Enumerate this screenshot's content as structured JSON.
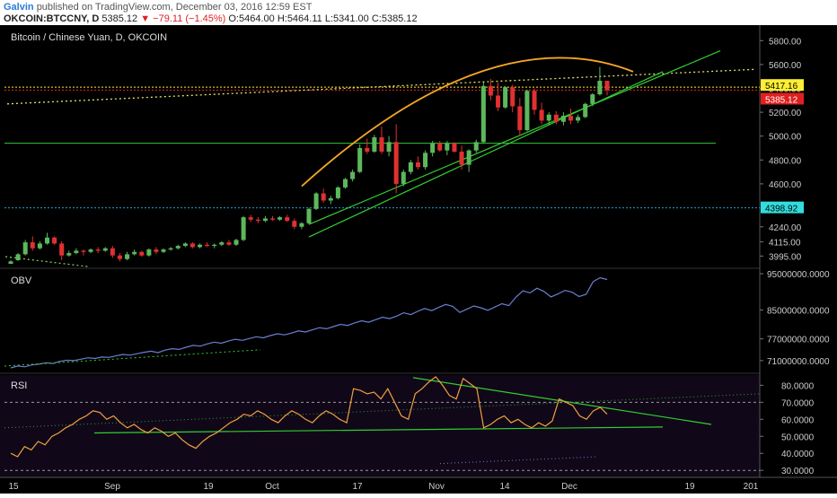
{
  "header": {
    "author": "Galvin",
    "published_text": "published on TradingView.com, December 03, 2016 12:59 EST",
    "symbol": "OKCOIN:BTCCNY, D",
    "last_price": "5385.12",
    "change": "▼ −79.11 (−1.45%)",
    "open": "O:5464.00",
    "high": "H:5464.11",
    "low": "L:5341.00",
    "close": "C:5385.12"
  },
  "colors": {
    "background": "#000000",
    "up_candle": "#5cb85c",
    "down_candle": "#e03030",
    "obv_line": "#6a7fd0",
    "rsi_line": "#f0a040",
    "trend_green": "#33cc33",
    "arc_orange": "#f5a623",
    "dotted_yellow": "#e8e070",
    "last_label": "#e02020",
    "highlight_label": "#ffee33",
    "cyan_label": "#33dddd"
  },
  "chart_data": [
    {
      "type": "candlestick",
      "title": "Bitcoin / Chinese Yuan, D, OKCOIN",
      "ylim": [
        3900,
        5900
      ],
      "y_ticks": [
        "5800.00",
        "5600.00",
        "5400.00",
        "5200.00",
        "5000.00",
        "4800.00",
        "4600.00",
        "4398.92",
        "4240.00",
        "4115.00",
        "3995.00"
      ],
      "x_ticks": [
        "15",
        "Sep",
        "19",
        "Oct",
        "17",
        "Nov",
        "14",
        "Dec",
        "19",
        "201"
      ],
      "price_labels": [
        {
          "value": "5417.16",
          "kind": "highlight"
        },
        {
          "value": "5385.12",
          "kind": "last"
        },
        {
          "value": "4398.92",
          "kind": "level"
        }
      ],
      "horizontal_levels": [
        4940,
        4398.92
      ],
      "candles": [
        [
          3930,
          3960,
          3930,
          3950
        ],
        [
          3960,
          4020,
          3955,
          4010
        ],
        [
          4010,
          4130,
          4000,
          4110
        ],
        [
          4110,
          4160,
          4040,
          4060
        ],
        [
          4060,
          4120,
          4050,
          4100
        ],
        [
          4100,
          4190,
          4090,
          4150
        ],
        [
          4150,
          4160,
          4090,
          4100
        ],
        [
          4100,
          4120,
          3960,
          4000
        ],
        [
          4000,
          4040,
          3990,
          4020
        ],
        [
          4020,
          4060,
          4010,
          4040
        ],
        [
          4040,
          4050,
          4000,
          4030
        ],
        [
          4030,
          4060,
          4020,
          4050
        ],
        [
          4050,
          4070,
          4020,
          4040
        ],
        [
          4040,
          4070,
          4030,
          4060
        ],
        [
          4060,
          4080,
          3980,
          4000
        ],
        [
          4000,
          4020,
          3950,
          3970
        ],
        [
          3970,
          4030,
          3960,
          4010
        ],
        [
          4010,
          4050,
          4000,
          4030
        ],
        [
          4030,
          4040,
          3990,
          4000
        ],
        [
          4000,
          4060,
          3990,
          4050
        ],
        [
          4050,
          4070,
          4010,
          4030
        ],
        [
          4030,
          4060,
          4020,
          4050
        ],
        [
          4050,
          4070,
          4040,
          4060
        ],
        [
          4060,
          4090,
          4050,
          4080
        ],
        [
          4080,
          4110,
          4070,
          4100
        ],
        [
          4100,
          4110,
          4060,
          4070
        ],
        [
          4070,
          4100,
          4060,
          4090
        ],
        [
          4090,
          4110,
          4070,
          4080
        ],
        [
          4080,
          4100,
          4060,
          4090
        ],
        [
          4090,
          4120,
          4080,
          4110
        ],
        [
          4110,
          4130,
          4080,
          4090
        ],
        [
          4090,
          4140,
          4080,
          4130
        ],
        [
          4130,
          4330,
          4120,
          4320
        ],
        [
          4320,
          4340,
          4280,
          4300
        ],
        [
          4300,
          4320,
          4270,
          4290
        ],
        [
          4290,
          4330,
          4280,
          4310
        ],
        [
          4310,
          4330,
          4290,
          4300
        ],
        [
          4300,
          4330,
          4290,
          4320
        ],
        [
          4320,
          4340,
          4280,
          4290
        ],
        [
          4290,
          4310,
          4220,
          4240
        ],
        [
          4240,
          4280,
          4220,
          4270
        ],
        [
          4270,
          4400,
          4260,
          4390
        ],
        [
          4390,
          4530,
          4380,
          4520
        ],
        [
          4520,
          4560,
          4440,
          4460
        ],
        [
          4460,
          4500,
          4430,
          4480
        ],
        [
          4480,
          4580,
          4470,
          4570
        ],
        [
          4570,
          4650,
          4560,
          4640
        ],
        [
          4640,
          4720,
          4620,
          4700
        ],
        [
          4700,
          4930,
          4690,
          4900
        ],
        [
          4900,
          4980,
          4850,
          4870
        ],
        [
          4870,
          5010,
          4860,
          4990
        ],
        [
          4990,
          5080,
          4850,
          4870
        ],
        [
          4870,
          5000,
          4830,
          4950
        ],
        [
          4950,
          5100,
          4520,
          4600
        ],
        [
          4600,
          4720,
          4580,
          4700
        ],
        [
          4700,
          4800,
          4680,
          4780
        ],
        [
          4780,
          4830,
          4720,
          4740
        ],
        [
          4740,
          4880,
          4720,
          4860
        ],
        [
          4860,
          4960,
          4830,
          4940
        ],
        [
          4940,
          4960,
          4870,
          4880
        ],
        [
          4880,
          4960,
          4840,
          4940
        ],
        [
          4940,
          4950,
          4860,
          4870
        ],
        [
          4870,
          4920,
          4720,
          4760
        ],
        [
          4760,
          4890,
          4700,
          4880
        ],
        [
          4880,
          4970,
          4860,
          4950
        ],
        [
          4950,
          5450,
          4940,
          5420
        ],
        [
          5420,
          5480,
          5300,
          5340
        ],
        [
          5340,
          5450,
          5210,
          5240
        ],
        [
          5240,
          5420,
          5230,
          5410
        ],
        [
          5410,
          5430,
          5200,
          5250
        ],
        [
          5250,
          5320,
          5000,
          5050
        ],
        [
          5050,
          5390,
          5040,
          5380
        ],
        [
          5380,
          5400,
          5180,
          5220
        ],
        [
          5220,
          5280,
          5100,
          5130
        ],
        [
          5130,
          5200,
          5090,
          5180
        ],
        [
          5180,
          5210,
          5100,
          5120
        ],
        [
          5120,
          5200,
          5090,
          5170
        ],
        [
          5170,
          5230,
          5100,
          5130
        ],
        [
          5130,
          5180,
          5110,
          5160
        ],
        [
          5160,
          5280,
          5150,
          5270
        ],
        [
          5270,
          5360,
          5250,
          5350
        ],
        [
          5350,
          5580,
          5340,
          5464
        ],
        [
          5464,
          5464.11,
          5341,
          5385.12
        ]
      ],
      "ascending_channel": [
        [
          4200,
          5390
        ],
        [
          4500,
          5610
        ]
      ],
      "arc": "rounded top from candle 42 to candle 84",
      "dotted_trend": [
        [
          5270,
          5560
        ]
      ]
    },
    {
      "type": "line",
      "title": "OBV",
      "ylim": [
        68000000,
        96000000
      ],
      "y_ticks": [
        "95000000.0000",
        "85000000.0000",
        "77000000.0000",
        "71000000.0000"
      ],
      "values": [
        69000000,
        69500000,
        69300000,
        69800000,
        70000000,
        70400000,
        70200000,
        70800000,
        71100000,
        71000000,
        71400000,
        71800000,
        71600000,
        72000000,
        71900000,
        72300000,
        72700000,
        72500000,
        72900000,
        73300000,
        73600000,
        73200000,
        73900000,
        74300000,
        74100000,
        74700000,
        75200000,
        75000000,
        75600000,
        76100000,
        75800000,
        76400000,
        76900000,
        76600000,
        77100000,
        77600000,
        77300000,
        77900000,
        78400000,
        78100000,
        78600000,
        79200000,
        78900000,
        79500000,
        80100000,
        79800000,
        80400000,
        81000000,
        80700000,
        81400000,
        82000000,
        81600000,
        82300000,
        83000000,
        82600000,
        83300000,
        84200000,
        83700000,
        84600000,
        85400000,
        84800000,
        85700000,
        86500000,
        86000000,
        84300000,
        85200000,
        86100000,
        85600000,
        84900000,
        85800000,
        86700000,
        86200000,
        88500000,
        90300000,
        89700000,
        91000000,
        90100000,
        88600000,
        89400000,
        90400000,
        89900000,
        88700000,
        89300000,
        92800000,
        93900000,
        93400000
      ]
    },
    {
      "type": "line",
      "title": "RSI",
      "ylim": [
        28,
        86
      ],
      "y_ticks": [
        "80.0000",
        "70.0000",
        "60.0000",
        "50.0000",
        "40.0000",
        "30.0000"
      ],
      "bands": [
        70,
        30
      ],
      "values": [
        40,
        38,
        44,
        42,
        47,
        45,
        50,
        52,
        55,
        57,
        60,
        62,
        65,
        64,
        60,
        62,
        58,
        55,
        57,
        54,
        52,
        55,
        53,
        50,
        52,
        48,
        45,
        43,
        47,
        50,
        52,
        55,
        58,
        60,
        63,
        62,
        65,
        63,
        60,
        58,
        62,
        65,
        63,
        60,
        58,
        62,
        65,
        63,
        60,
        58,
        78,
        77,
        75,
        76,
        72,
        78,
        70,
        62,
        60,
        75,
        78,
        82,
        85,
        80,
        74,
        72,
        84,
        81,
        78,
        55,
        57,
        60,
        62,
        58,
        60,
        57,
        55,
        58,
        56,
        59,
        72,
        70,
        68,
        62,
        60,
        65,
        67,
        63
      ],
      "trendlines": [
        "descending from Nov high toward Dec",
        "support near 55"
      ]
    }
  ]
}
